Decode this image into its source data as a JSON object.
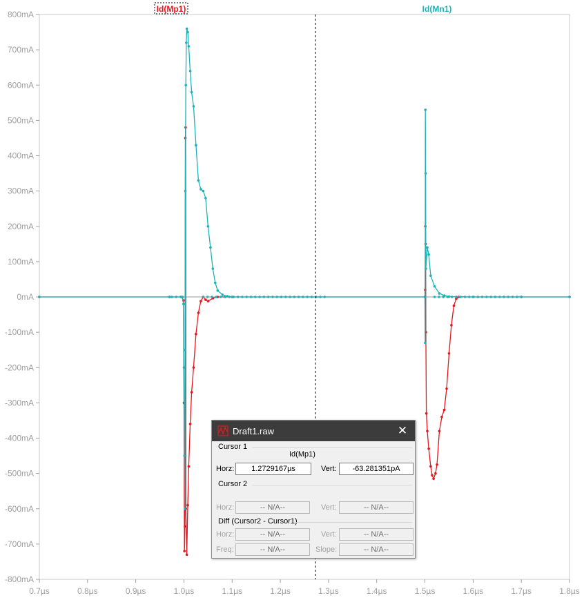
{
  "window": {
    "title": "Draft1.raw"
  },
  "plot": {
    "traces": [
      {
        "name": "Id(Mp1)",
        "color": "#e8141c"
      },
      {
        "name": "Id(Mn1)",
        "color": "#1cb2b8"
      }
    ],
    "x_ticks": [
      "0.7µs",
      "0.8µs",
      "0.9µs",
      "1.0µs",
      "1.1µs",
      "1.2µs",
      "1.3µs",
      "1.4µs",
      "1.5µs",
      "1.6µs",
      "1.7µs",
      "1.8µs"
    ],
    "y_ticks": [
      "800mA",
      "700mA",
      "600mA",
      "500mA",
      "400mA",
      "300mA",
      "200mA",
      "100mA",
      "0mA",
      "-100mA",
      "-200mA",
      "-300mA",
      "-400mA",
      "-500mA",
      "-600mA",
      "-700mA",
      "-800mA"
    ],
    "cursor_x_us": 1.2729167
  },
  "chart_data": {
    "type": "line",
    "xlabel": "",
    "ylabel": "",
    "xlim": [
      0.7,
      1.8
    ],
    "ylim": [
      -800,
      800
    ],
    "x_unit": "µs",
    "y_unit": "mA",
    "grid": false,
    "series": [
      {
        "name": "Id(Mp1)",
        "color": "#e8141c",
        "points": [
          [
            0.7,
            0
          ],
          [
            0.97,
            0
          ],
          [
            0.995,
            0
          ],
          [
            0.999,
            -10
          ],
          [
            1.0,
            -300
          ],
          [
            1.001,
            -720
          ],
          [
            1.002,
            -650
          ],
          [
            1.003,
            450
          ],
          [
            1.0035,
            480
          ],
          [
            1.004,
            -600
          ],
          [
            1.006,
            -730
          ],
          [
            1.008,
            -590
          ],
          [
            1.01,
            -480
          ],
          [
            1.013,
            -360
          ],
          [
            1.016,
            -270
          ],
          [
            1.02,
            -200
          ],
          [
            1.025,
            -105
          ],
          [
            1.03,
            -45
          ],
          [
            1.035,
            -12
          ],
          [
            1.04,
            0
          ],
          [
            1.045,
            -8
          ],
          [
            1.05,
            -12
          ],
          [
            1.06,
            -4
          ],
          [
            1.07,
            0
          ],
          [
            1.1,
            0
          ],
          [
            1.5,
            0
          ],
          [
            1.5005,
            20
          ],
          [
            1.501,
            200
          ],
          [
            1.5015,
            150
          ],
          [
            1.502,
            -100
          ],
          [
            1.503,
            -330
          ],
          [
            1.505,
            -380
          ],
          [
            1.508,
            -430
          ],
          [
            1.512,
            -480
          ],
          [
            1.515,
            -505
          ],
          [
            1.518,
            -515
          ],
          [
            1.522,
            -500
          ],
          [
            1.525,
            -475
          ],
          [
            1.53,
            -380
          ],
          [
            1.535,
            -340
          ],
          [
            1.54,
            -320
          ],
          [
            1.545,
            -260
          ],
          [
            1.55,
            -160
          ],
          [
            1.555,
            -80
          ],
          [
            1.56,
            -25
          ],
          [
            1.565,
            -5
          ],
          [
            1.57,
            0
          ],
          [
            1.7,
            0
          ],
          [
            1.8,
            0
          ]
        ]
      },
      {
        "name": "Id(Mn1)",
        "color": "#1cb2b8",
        "points": [
          [
            0.7,
            0
          ],
          [
            0.97,
            0
          ],
          [
            0.997,
            0
          ],
          [
            0.999,
            -20
          ],
          [
            1.0,
            -200
          ],
          [
            1.001,
            -450
          ],
          [
            1.002,
            -600
          ],
          [
            1.0025,
            -150
          ],
          [
            1.003,
            300
          ],
          [
            1.004,
            600
          ],
          [
            1.005,
            720
          ],
          [
            1.006,
            760
          ],
          [
            1.008,
            750
          ],
          [
            1.01,
            710
          ],
          [
            1.013,
            640
          ],
          [
            1.016,
            580
          ],
          [
            1.02,
            540
          ],
          [
            1.025,
            430
          ],
          [
            1.03,
            330
          ],
          [
            1.035,
            305
          ],
          [
            1.04,
            300
          ],
          [
            1.045,
            280
          ],
          [
            1.05,
            200
          ],
          [
            1.055,
            140
          ],
          [
            1.06,
            80
          ],
          [
            1.065,
            40
          ],
          [
            1.07,
            18
          ],
          [
            1.08,
            6
          ],
          [
            1.09,
            2
          ],
          [
            1.1,
            0
          ],
          [
            1.5,
            0
          ],
          [
            1.5005,
            -130
          ],
          [
            1.501,
            530
          ],
          [
            1.5015,
            350
          ],
          [
            1.502,
            80
          ],
          [
            1.505,
            140
          ],
          [
            1.508,
            120
          ],
          [
            1.512,
            60
          ],
          [
            1.52,
            30
          ],
          [
            1.53,
            10
          ],
          [
            1.54,
            4
          ],
          [
            1.55,
            1
          ],
          [
            1.6,
            0
          ],
          [
            1.7,
            0
          ],
          [
            1.8,
            0
          ]
        ]
      }
    ]
  },
  "cursor_panel": {
    "cursor1_label": "Cursor 1",
    "cursor1_trace": "Id(Mp1)",
    "horz_label": "Horz:",
    "vert_label": "Vert:",
    "cursor1_horz": "1.2729167µs",
    "cursor1_vert": "-63.281351pA",
    "cursor2_label": "Cursor 2",
    "cursor2_horz": "-- N/A--",
    "cursor2_vert": "-- N/A--",
    "diff_label": "Diff (Cursor2 - Cursor1)",
    "freq_label": "Freq:",
    "slope_label": "Slope:",
    "diff_horz": "-- N/A--",
    "diff_vert": "-- N/A--",
    "diff_freq": "-- N/A--",
    "diff_slope": "-- N/A--"
  }
}
